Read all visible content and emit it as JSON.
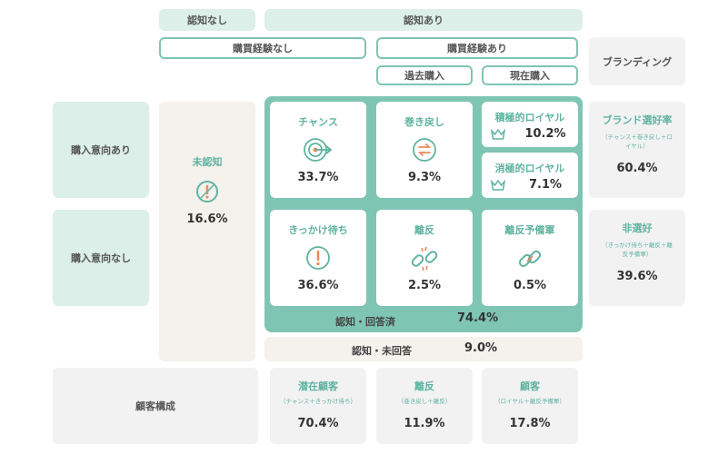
{
  "header": {
    "unaware": "認知なし",
    "aware": "認知あり",
    "no_purchase": "購買経験なし",
    "purchase": "購買経験あり",
    "past_purchase": "過去購入",
    "current_purchase": "現在購入",
    "branding": "ブランディング"
  },
  "rows": {
    "intent_yes": "購入意向あり",
    "intent_no": "購入意向なし",
    "composition": "顧客構成"
  },
  "unaware_cell": {
    "title": "未認知",
    "value": "16.6%",
    "icon": "exclamation-icon"
  },
  "cells": {
    "chance": {
      "title": "チャンス",
      "value": "33.7%",
      "icon": "target-icon"
    },
    "winback": {
      "title": "巻き戻し",
      "value": "9.3%",
      "icon": "rewind-icon"
    },
    "active_loyal": {
      "title": "積極的ロイヤル",
      "value": "10.2%",
      "icon": "crown-icon"
    },
    "passive_loyal": {
      "title": "消極的ロイヤル",
      "value": "7.1%",
      "icon": "crown-icon"
    },
    "trigger_wait": {
      "title": "きっかけ待ち",
      "value": "36.6%",
      "icon": "exclamation-icon"
    },
    "churn": {
      "title": "離反",
      "value": "2.5%",
      "icon": "broken-chain-icon"
    },
    "churn_reserve": {
      "title": "離反予備軍",
      "value": "0.5%",
      "icon": "chain-icon"
    }
  },
  "aware_answered": {
    "label": "認知・回答済",
    "value": "74.4%"
  },
  "aware_unanswered": {
    "label": "認知・未回答",
    "value": "9.0%"
  },
  "branding": {
    "preference": {
      "title": "ブランド選好率",
      "note": "（チャンス＋巻き戻し＋ロイヤル）",
      "value": "60.4%"
    },
    "non_preference": {
      "title": "非選好",
      "note": "（きっかけ待ち＋離反＋離反予備軍）",
      "value": "39.6%"
    }
  },
  "composition": {
    "potential": {
      "title": "潜在顧客",
      "note": "（チャンス＋きっかけ待ち）",
      "value": "70.4%"
    },
    "churned": {
      "title": "離反",
      "note": "（巻き戻し＋離反）",
      "value": "11.9%"
    },
    "customer": {
      "title": "顧客",
      "note": "（ロイヤル＋離反予備軍）",
      "value": "17.8%"
    }
  },
  "colors": {
    "teal": "#7fc5b4",
    "mint": "#dcefe9",
    "accent": "#5fb3a1",
    "orange": "#ee8a5a"
  }
}
